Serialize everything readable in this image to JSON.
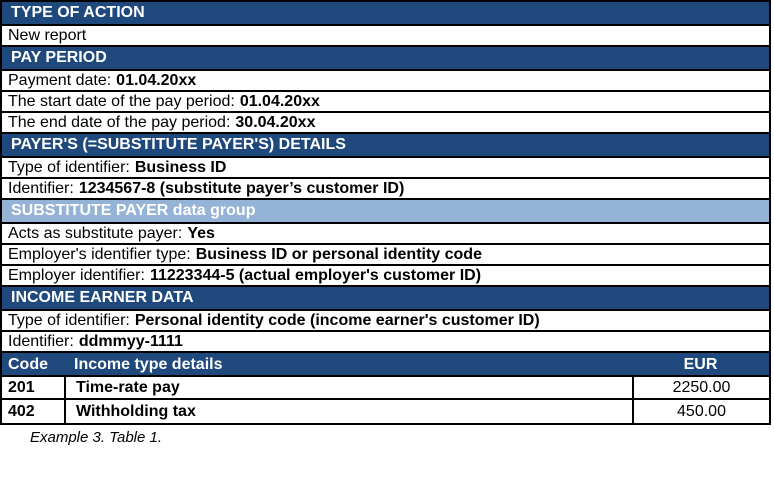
{
  "colors": {
    "section_header_bg": "#1F497D",
    "subsection_header_bg": "#95B3D7",
    "header_text": "#FFFFFF",
    "body_text": "#000000",
    "border": "#000000"
  },
  "rows": [
    {
      "type": "section",
      "text": "TYPE OF ACTION"
    },
    {
      "type": "plain",
      "text": "New report"
    },
    {
      "type": "section",
      "text": "PAY PERIOD"
    },
    {
      "type": "labeled",
      "label": "Payment date:",
      "value": "01.04.20xx"
    },
    {
      "type": "labeled",
      "label": "The start date of the pay period:",
      "value": "01.04.20xx"
    },
    {
      "type": "labeled",
      "label": "The end date of the pay period:",
      "value": "30.04.20xx"
    },
    {
      "type": "section",
      "text": "PAYER'S (=SUBSTITUTE PAYER'S) DETAILS"
    },
    {
      "type": "labeled",
      "label": "Type of identifier:",
      "value": "Business ID"
    },
    {
      "type": "labeled",
      "label": "Identifier:",
      "value": "1234567-8 (substitute payer’s customer ID)"
    },
    {
      "type": "section-light",
      "text": "SUBSTITUTE PAYER data group"
    },
    {
      "type": "labeled",
      "label": "Acts as substitute payer:",
      "value": "Yes"
    },
    {
      "type": "labeled",
      "label": "Employer's identifier type:",
      "value": "Business ID or personal identity code"
    },
    {
      "type": "labeled",
      "label": "Employer identifier:",
      "value": "11223344-5 (actual employer's customer ID)"
    },
    {
      "type": "section",
      "text": "INCOME EARNER DATA"
    },
    {
      "type": "labeled",
      "label": "Type of identifier:",
      "value": "Personal identity code (income earner's customer ID)"
    },
    {
      "type": "labeled",
      "label": "Identifier:",
      "value": "ddmmyy-1111"
    }
  ],
  "income_table": {
    "headers": {
      "code": "Code",
      "details": "Income type details",
      "amount": "EUR"
    },
    "rows": [
      {
        "code": "201",
        "details": "Time-rate pay",
        "amount": "2250.00"
      },
      {
        "code": "402",
        "details": "Withholding tax",
        "amount": "450.00"
      }
    ]
  },
  "caption": "Example 3. Table 1."
}
